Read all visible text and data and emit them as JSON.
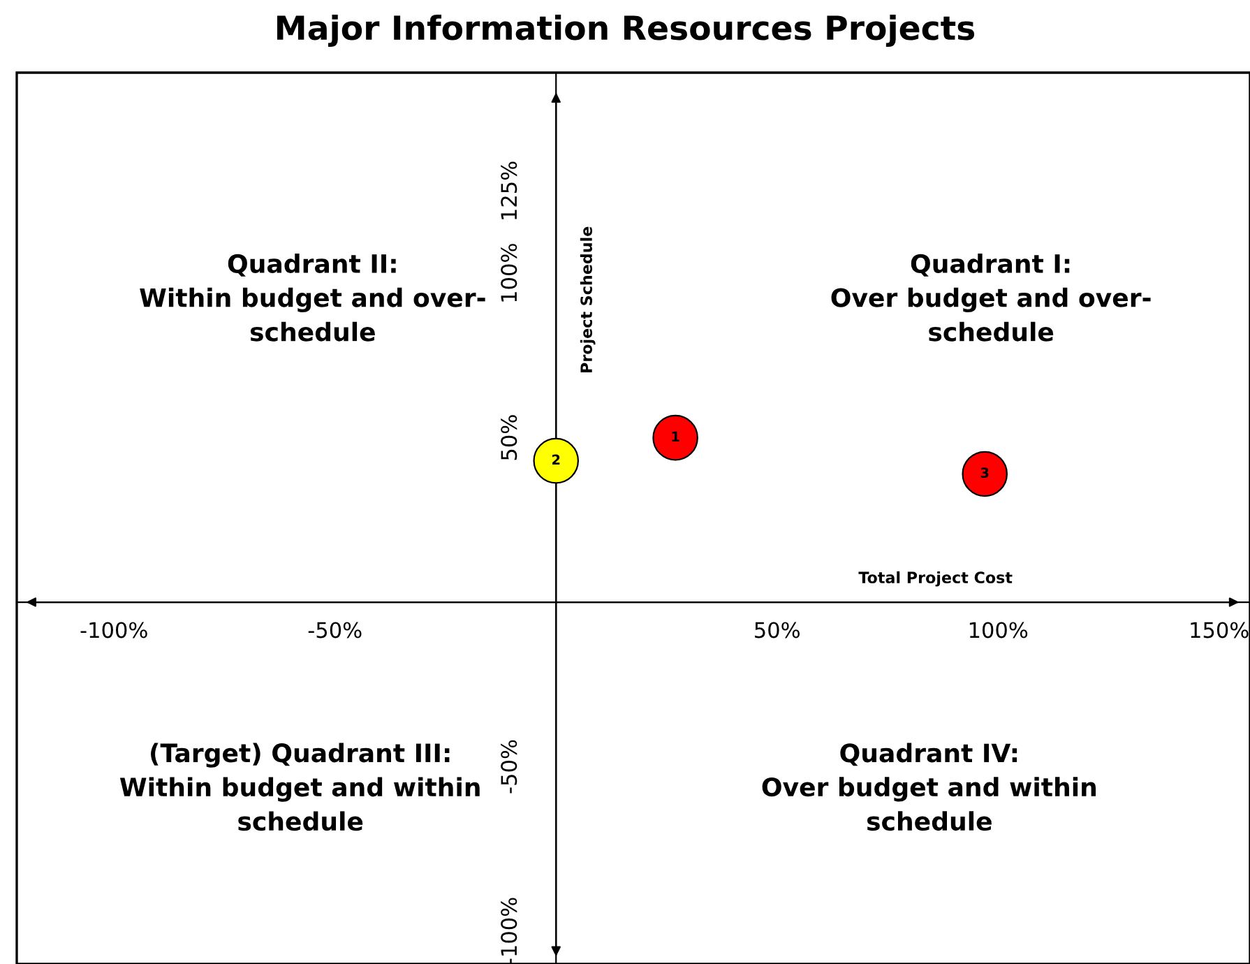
{
  "chart_data": {
    "type": "scatter",
    "title": "Major Information Resources Projects",
    "xlabel": "Total Project Cost",
    "ylabel": "Project Schedule",
    "x": [
      27,
      0,
      97
    ],
    "values": [
      50,
      43,
      39
    ],
    "colors": [
      "#ff0000",
      "#ffff00",
      "#ff0000"
    ],
    "marker": "circle",
    "xlim": [
      -122,
      157
    ],
    "xticks": [
      {
        "value": -100,
        "label": "-100%"
      },
      {
        "value": -50,
        "label": "-50%"
      },
      {
        "value": 50,
        "label": "50%"
      },
      {
        "value": 100,
        "label": "100%"
      },
      {
        "value": 150,
        "label": "150%"
      }
    ],
    "ylim": [
      -110,
      161
    ],
    "yticks": [
      {
        "value": -100,
        "label": "-100%"
      },
      {
        "value": -50,
        "label": "-50%"
      },
      {
        "value": 50,
        "label": "50%"
      },
      {
        "value": 100,
        "label": "100%"
      },
      {
        "value": 125,
        "label": "125%"
      }
    ],
    "annotations": [
      {
        "text": "1",
        "x": 27,
        "y": 50
      },
      {
        "text": "2",
        "x": 0,
        "y": 43
      },
      {
        "text": "3",
        "x": 97,
        "y": 39
      },
      "Quadrant II:\nWithin budget and over-\nschedule",
      "Quadrant I:\nOver budget and over-\nschedule",
      "(Target) Quadrant III:\nWithin budget and within\nschedule",
      "Quadrant IV:\nOver budget and within\nschedule"
    ],
    "grid": false,
    "legend": false
  }
}
